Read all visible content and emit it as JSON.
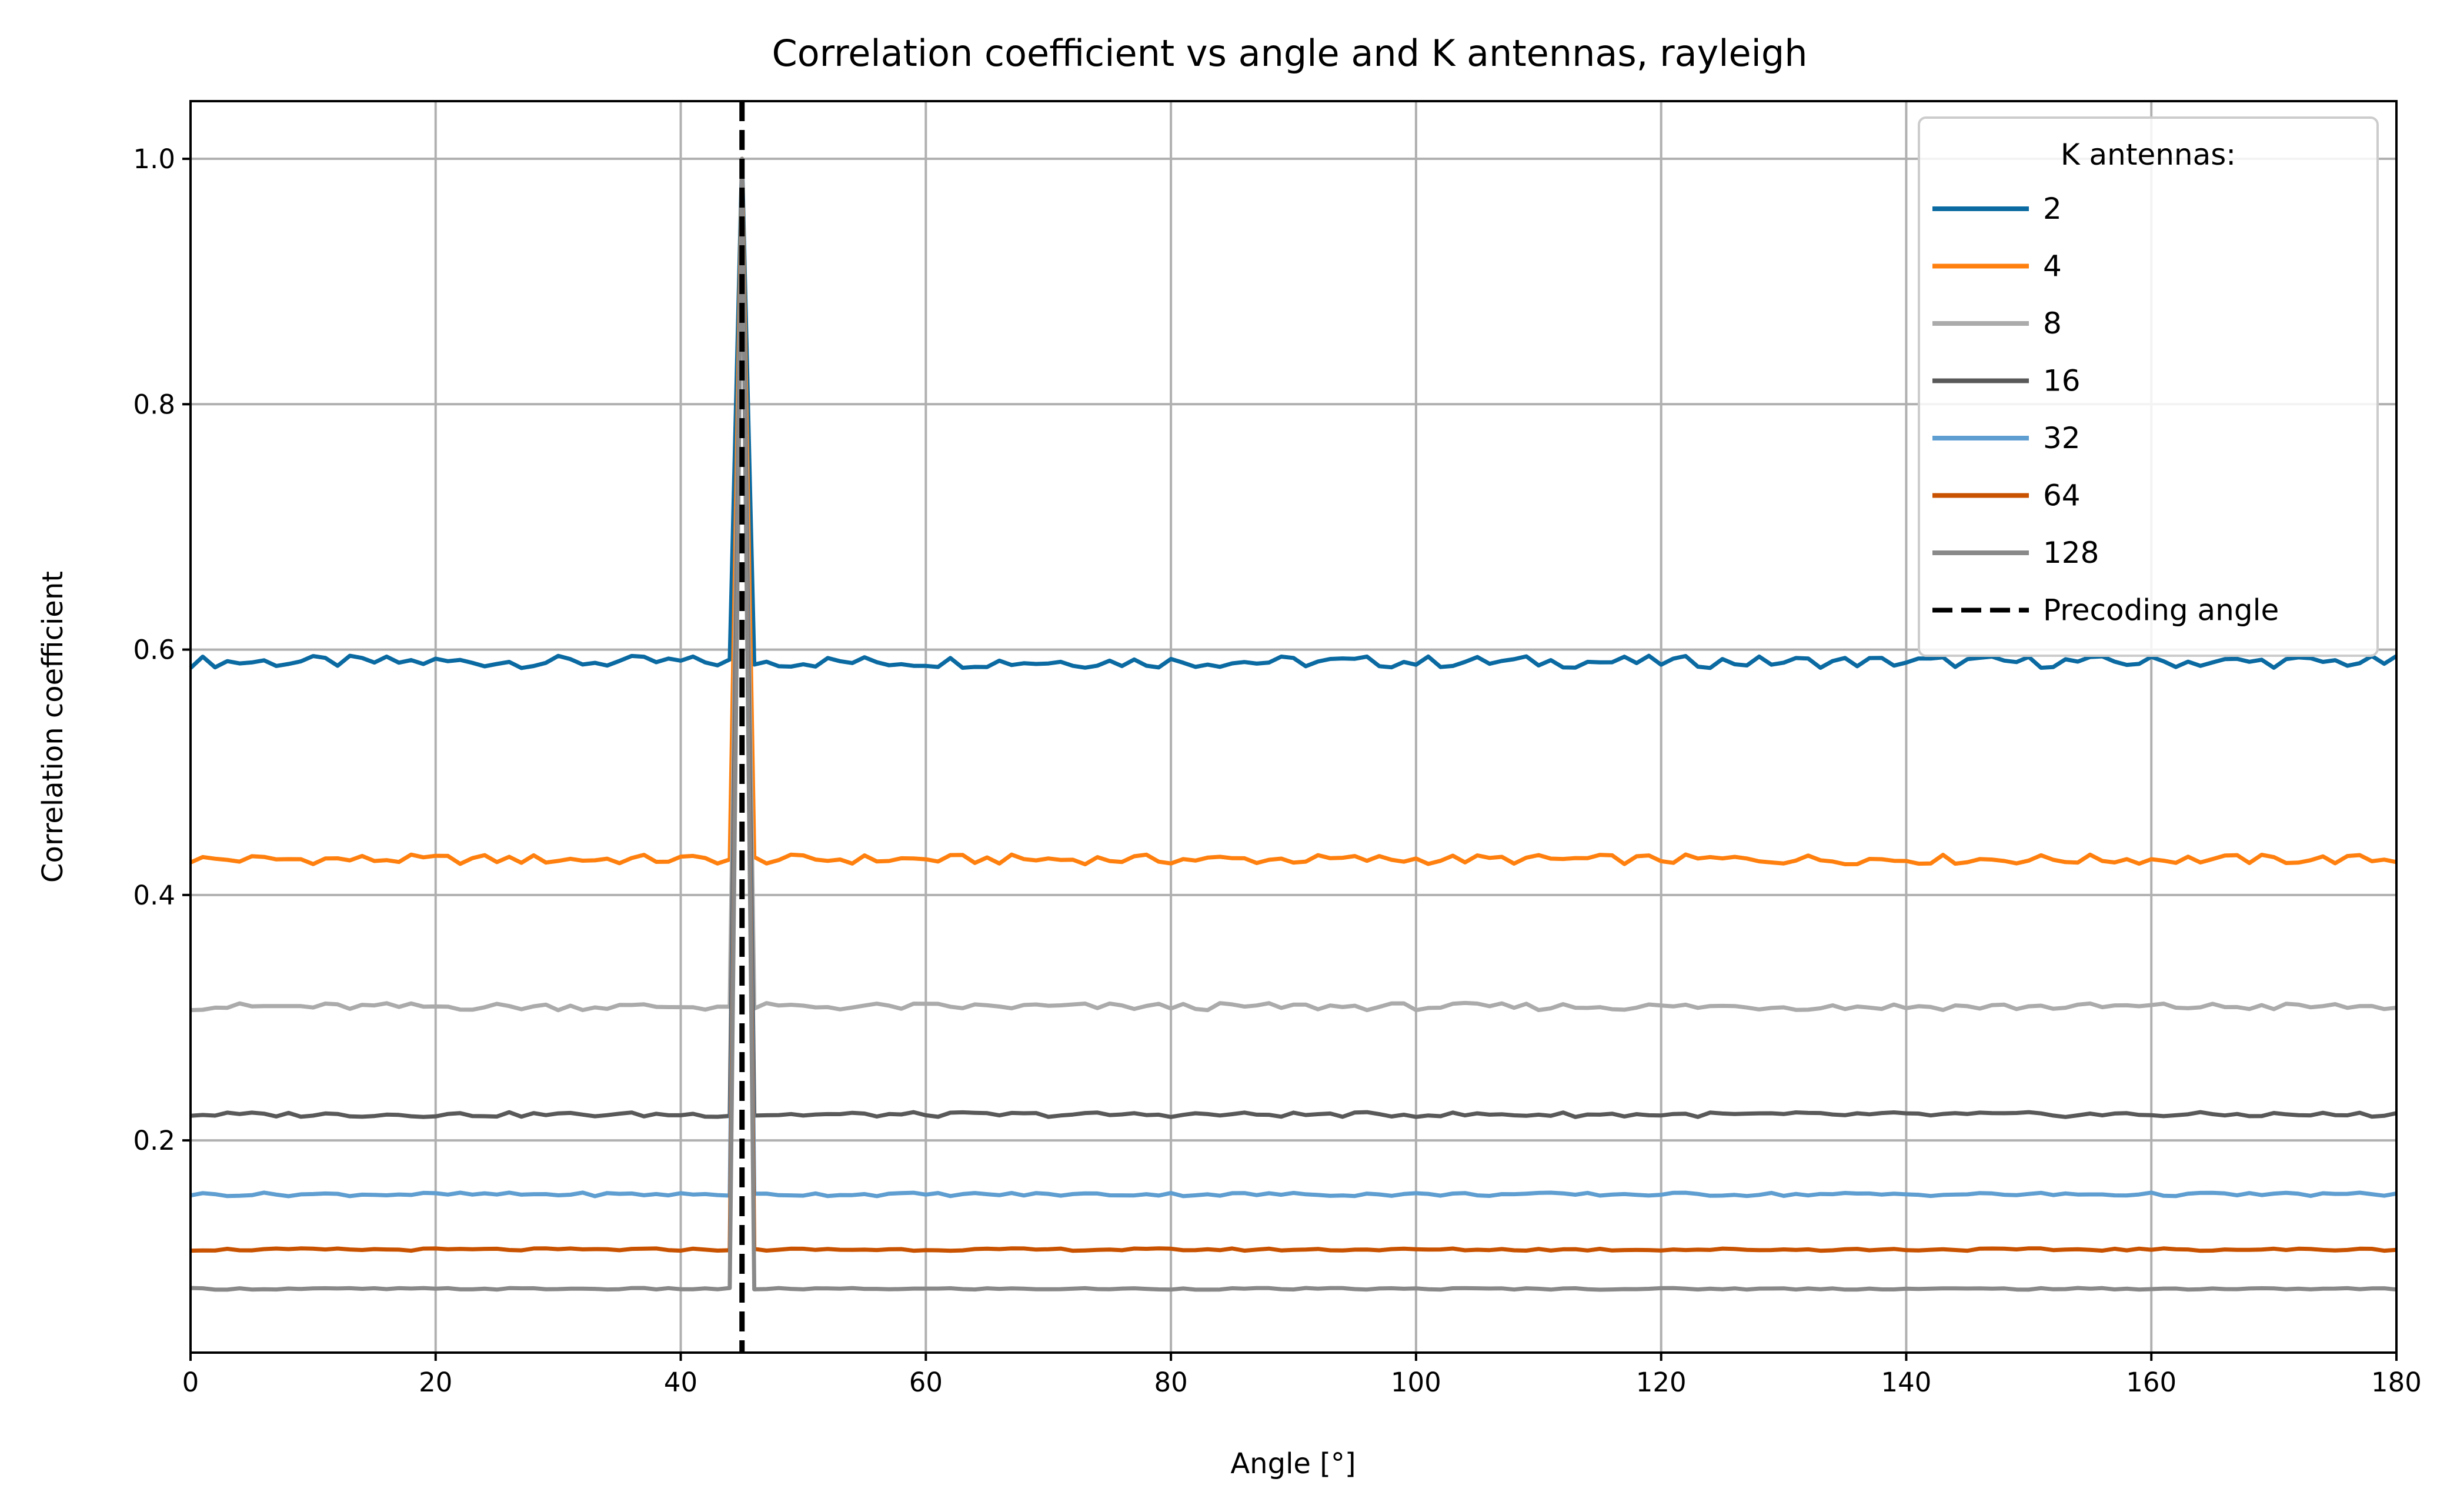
{
  "chart_data": {
    "type": "line",
    "title": "Correlation coefficient vs angle and K antennas, rayleigh",
    "xlabel": "Angle [°]",
    "ylabel": "Correlation coefficient",
    "xlim": [
      0,
      180
    ],
    "ylim": [
      0.027,
      1.047
    ],
    "xticks": [
      0,
      20,
      40,
      60,
      80,
      100,
      120,
      140,
      160,
      180
    ],
    "xtick_labels": [
      "0",
      "20",
      "40",
      "60",
      "80",
      "100",
      "120",
      "140",
      "160",
      "180"
    ],
    "yticks": [
      0.2,
      0.4,
      0.6,
      0.8,
      1.0
    ],
    "ytick_labels": [
      "0.2",
      "0.4",
      "0.6",
      "0.8",
      "1.0"
    ],
    "grid": true,
    "legend": {
      "title": "K antennas:",
      "placement": "top-right"
    },
    "x_range": {
      "start": 0,
      "stop": 180,
      "step": 1
    },
    "peak": {
      "x": 45,
      "y": 1.0
    },
    "series": [
      {
        "name": "2",
        "color": "#0a6aa1",
        "baseline": 0.59,
        "noise": 0.005
      },
      {
        "name": "4",
        "color": "#ff800e",
        "baseline": 0.429,
        "noise": 0.004
      },
      {
        "name": "8",
        "color": "#ababab",
        "baseline": 0.309,
        "noise": 0.003
      },
      {
        "name": "16",
        "color": "#595959",
        "baseline": 0.221,
        "noise": 0.002
      },
      {
        "name": "32",
        "color": "#5f9ed1",
        "baseline": 0.156,
        "noise": 0.0015
      },
      {
        "name": "64",
        "color": "#c85200",
        "baseline": 0.111,
        "noise": 0.001
      },
      {
        "name": "128",
        "color": "#898989",
        "baseline": 0.079,
        "noise": 0.0007
      }
    ],
    "reference_line": {
      "name": "Precoding angle",
      "x": 45,
      "color": "#000000",
      "style": "dashed"
    }
  }
}
